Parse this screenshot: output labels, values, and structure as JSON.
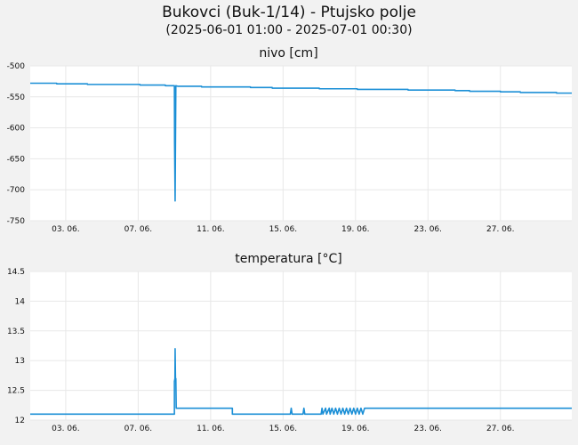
{
  "title": "Bukovci (Buk-1/14) - Ptujsko polje",
  "subtitle": "(2025-06-01 01:00 - 2025-07-01 00:30)",
  "colors": {
    "series": "#1b8fd6",
    "grid": "#e8e8e8",
    "plot_bg": "#ffffff",
    "page_bg": "#f2f2f2"
  },
  "chart_data": [
    {
      "type": "line",
      "title": "nivo [cm]",
      "x_unit": "day of June 2025",
      "xlim": [
        1.04,
        30.94
      ],
      "ylim": [
        -750,
        -500
      ],
      "yticks": [
        -500,
        -550,
        -600,
        -650,
        -700,
        -750
      ],
      "ytick_labels": [
        "-500",
        "-550",
        "-600",
        "-650",
        "-700",
        "-750"
      ],
      "xticks": [
        3,
        7,
        11,
        15,
        19,
        23,
        27
      ],
      "xtick_labels": [
        "03. 06.",
        "07. 06.",
        "11. 06.",
        "15. 06.",
        "19. 06.",
        "23. 06.",
        "27. 06."
      ],
      "grid": true,
      "series": [
        {
          "points": [
            [
              1.04,
              -528
            ],
            [
              2.5,
              -528
            ],
            [
              2.5,
              -529
            ],
            [
              4.2,
              -529
            ],
            [
              4.2,
              -530
            ],
            [
              7.1,
              -530
            ],
            [
              7.1,
              -531
            ],
            [
              8.5,
              -531
            ],
            [
              8.5,
              -532
            ],
            [
              9.0,
              -532
            ],
            [
              9.01,
              -625
            ],
            [
              9.04,
              -718
            ],
            [
              9.08,
              -532
            ],
            [
              9.2,
              -533
            ],
            [
              10.5,
              -533
            ],
            [
              10.5,
              -534
            ],
            [
              13.2,
              -534
            ],
            [
              13.2,
              -535
            ],
            [
              14.4,
              -535
            ],
            [
              14.4,
              -536
            ],
            [
              17.0,
              -536
            ],
            [
              17.0,
              -537
            ],
            [
              19.1,
              -537
            ],
            [
              19.1,
              -538
            ],
            [
              21.9,
              -538
            ],
            [
              21.9,
              -539
            ],
            [
              24.5,
              -539
            ],
            [
              24.5,
              -540
            ],
            [
              25.3,
              -540
            ],
            [
              25.3,
              -541
            ],
            [
              27.0,
              -541
            ],
            [
              27.0,
              -542
            ],
            [
              28.1,
              -542
            ],
            [
              28.1,
              -543
            ],
            [
              30.1,
              -543
            ],
            [
              30.1,
              -544
            ],
            [
              30.94,
              -544
            ]
          ]
        }
      ]
    },
    {
      "type": "line",
      "title": "temperatura [°C]",
      "x_unit": "day of June 2025",
      "xlim": [
        1.04,
        30.94
      ],
      "ylim": [
        12,
        14.5
      ],
      "yticks": [
        12,
        12.5,
        13,
        13.5,
        14,
        14.5
      ],
      "ytick_labels": [
        "12",
        "12.5",
        "13",
        "13.5",
        "14",
        "14.5"
      ],
      "xticks": [
        3,
        7,
        11,
        15,
        19,
        23,
        27
      ],
      "xtick_labels": [
        "03. 06.",
        "07. 06.",
        "11. 06.",
        "15. 06.",
        "19. 06.",
        "23. 06.",
        "27. 06."
      ],
      "grid": true,
      "series": [
        {
          "points": [
            [
              1.04,
              12.1
            ],
            [
              9.0,
              12.1
            ],
            [
              9.0,
              12.65
            ],
            [
              9.03,
              12.7
            ],
            [
              9.04,
              13.2
            ],
            [
              9.06,
              12.7
            ],
            [
              9.08,
              12.7
            ],
            [
              9.1,
              12.2
            ],
            [
              12.2,
              12.2
            ],
            [
              12.2,
              12.1
            ],
            [
              15.4,
              12.1
            ],
            [
              15.45,
              12.2
            ],
            [
              15.5,
              12.1
            ],
            [
              16.1,
              12.1
            ],
            [
              16.15,
              12.2
            ],
            [
              16.2,
              12.1
            ],
            [
              17.1,
              12.1
            ],
            [
              17.15,
              12.2
            ],
            [
              17.2,
              12.1
            ],
            [
              17.35,
              12.2
            ],
            [
              17.4,
              12.1
            ],
            [
              17.55,
              12.2
            ],
            [
              17.6,
              12.1
            ],
            [
              17.7,
              12.2
            ],
            [
              17.8,
              12.1
            ],
            [
              17.9,
              12.2
            ],
            [
              18.0,
              12.1
            ],
            [
              18.1,
              12.2
            ],
            [
              18.2,
              12.1
            ],
            [
              18.3,
              12.2
            ],
            [
              18.4,
              12.1
            ],
            [
              18.5,
              12.2
            ],
            [
              18.6,
              12.1
            ],
            [
              18.7,
              12.2
            ],
            [
              18.8,
              12.1
            ],
            [
              18.9,
              12.2
            ],
            [
              19.0,
              12.1
            ],
            [
              19.1,
              12.2
            ],
            [
              19.2,
              12.1
            ],
            [
              19.3,
              12.2
            ],
            [
              19.4,
              12.1
            ],
            [
              19.5,
              12.2
            ],
            [
              30.94,
              12.2
            ]
          ]
        }
      ]
    }
  ]
}
